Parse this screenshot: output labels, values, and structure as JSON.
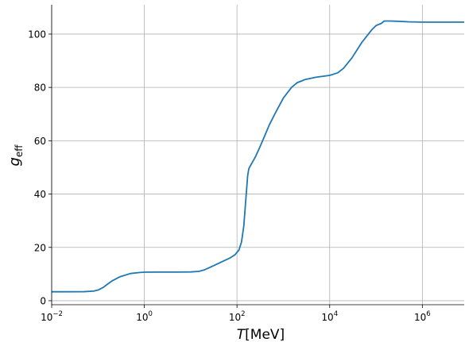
{
  "chart_data": {
    "type": "line",
    "xscale": "log",
    "xlim": [
      0.01,
      8000000
    ],
    "ylim": [
      -1.5,
      111
    ],
    "grid": true,
    "xlabel": {
      "italic": "T",
      "rest": "[MeV]"
    },
    "ylabel": {
      "main": "g",
      "sub": "eff"
    },
    "x_ticks": [
      {
        "value": 0.01,
        "base": "10",
        "exp": "−2"
      },
      {
        "value": 1,
        "base": "10",
        "exp": "0"
      },
      {
        "value": 100,
        "base": "10",
        "exp": "2"
      },
      {
        "value": 10000,
        "base": "10",
        "exp": "4"
      },
      {
        "value": 1000000,
        "base": "10",
        "exp": "6"
      }
    ],
    "y_ticks": [
      0,
      20,
      40,
      60,
      80,
      100
    ],
    "series": [
      {
        "color": "#1f77b4",
        "points": [
          [
            0.01,
            3.36
          ],
          [
            0.02,
            3.36
          ],
          [
            0.05,
            3.4
          ],
          [
            0.08,
            3.6
          ],
          [
            0.1,
            4.0
          ],
          [
            0.13,
            5.0
          ],
          [
            0.16,
            6.2
          ],
          [
            0.2,
            7.4
          ],
          [
            0.3,
            9.0
          ],
          [
            0.5,
            10.2
          ],
          [
            0.8,
            10.6
          ],
          [
            1,
            10.7
          ],
          [
            2,
            10.75
          ],
          [
            5,
            10.75
          ],
          [
            10,
            10.8
          ],
          [
            15,
            11.0
          ],
          [
            20,
            11.6
          ],
          [
            30,
            13.0
          ],
          [
            50,
            14.8
          ],
          [
            70,
            16.0
          ],
          [
            90,
            17.2
          ],
          [
            110,
            19.0
          ],
          [
            125,
            22.0
          ],
          [
            140,
            28.0
          ],
          [
            155,
            38.0
          ],
          [
            170,
            47.0
          ],
          [
            180,
            49.5
          ],
          [
            200,
            51.0
          ],
          [
            250,
            54.0
          ],
          [
            300,
            57.0
          ],
          [
            400,
            62.0
          ],
          [
            500,
            66.0
          ],
          [
            700,
            71.0
          ],
          [
            1000,
            76.0
          ],
          [
            1500,
            80.0
          ],
          [
            2000,
            81.8
          ],
          [
            3000,
            83.0
          ],
          [
            5000,
            83.8
          ],
          [
            8000,
            84.3
          ],
          [
            10000,
            84.5
          ],
          [
            15000,
            85.5
          ],
          [
            20000,
            87.2
          ],
          [
            30000,
            91.0
          ],
          [
            50000,
            97.0
          ],
          [
            80000,
            101.5
          ],
          [
            100000,
            103.2
          ],
          [
            130000,
            104.0
          ],
          [
            150000,
            104.9
          ],
          [
            200000,
            104.9
          ],
          [
            300000,
            104.8
          ],
          [
            500000,
            104.6
          ],
          [
            1000000,
            104.5
          ],
          [
            3000000,
            104.5
          ],
          [
            8000000,
            104.5
          ]
        ]
      }
    ]
  }
}
